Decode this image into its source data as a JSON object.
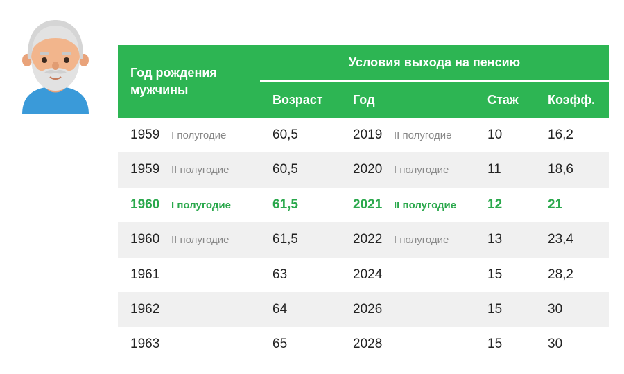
{
  "header": {
    "birth_year_label": "Год рождения мужчины",
    "conditions_label": "Условия выхода на пенсию",
    "age_label": "Возраст",
    "year_label": "Год",
    "experience_label": "Стаж",
    "coefficient_label": "Коэфф."
  },
  "rows": [
    {
      "birth_year": "1959",
      "birth_half": "I полугодие",
      "age": "60,5",
      "year": "2019",
      "year_half": "II полугодие",
      "experience": "10",
      "coefficient": "16,2"
    },
    {
      "birth_year": "1959",
      "birth_half": "II полугодие",
      "age": "60,5",
      "year": "2020",
      "year_half": "I полугодие",
      "experience": "11",
      "coefficient": "18,6"
    },
    {
      "birth_year": "1960",
      "birth_half": "I полугодие",
      "age": "61,5",
      "year": "2021",
      "year_half": "II полугодие",
      "experience": "12",
      "coefficient": "21"
    },
    {
      "birth_year": "1960",
      "birth_half": "II полугодие",
      "age": "61,5",
      "year": "2022",
      "year_half": "I полугодие",
      "experience": "13",
      "coefficient": "23,4"
    },
    {
      "birth_year": "1961",
      "birth_half": "",
      "age": "63",
      "year": "2024",
      "year_half": "",
      "experience": "15",
      "coefficient": "28,2"
    },
    {
      "birth_year": "1962",
      "birth_half": "",
      "age": "64",
      "year": "2026",
      "year_half": "",
      "experience": "15",
      "coefficient": "30"
    },
    {
      "birth_year": "1963",
      "birth_half": "",
      "age": "65",
      "year": "2028",
      "year_half": "",
      "experience": "15",
      "coefficient": "30"
    }
  ],
  "colors": {
    "accent": "#2db553",
    "highlight_text": "#2aa84c",
    "alt_row": "#f0f0f0"
  },
  "icons": {
    "avatar": "elderly-man-avatar-icon"
  }
}
